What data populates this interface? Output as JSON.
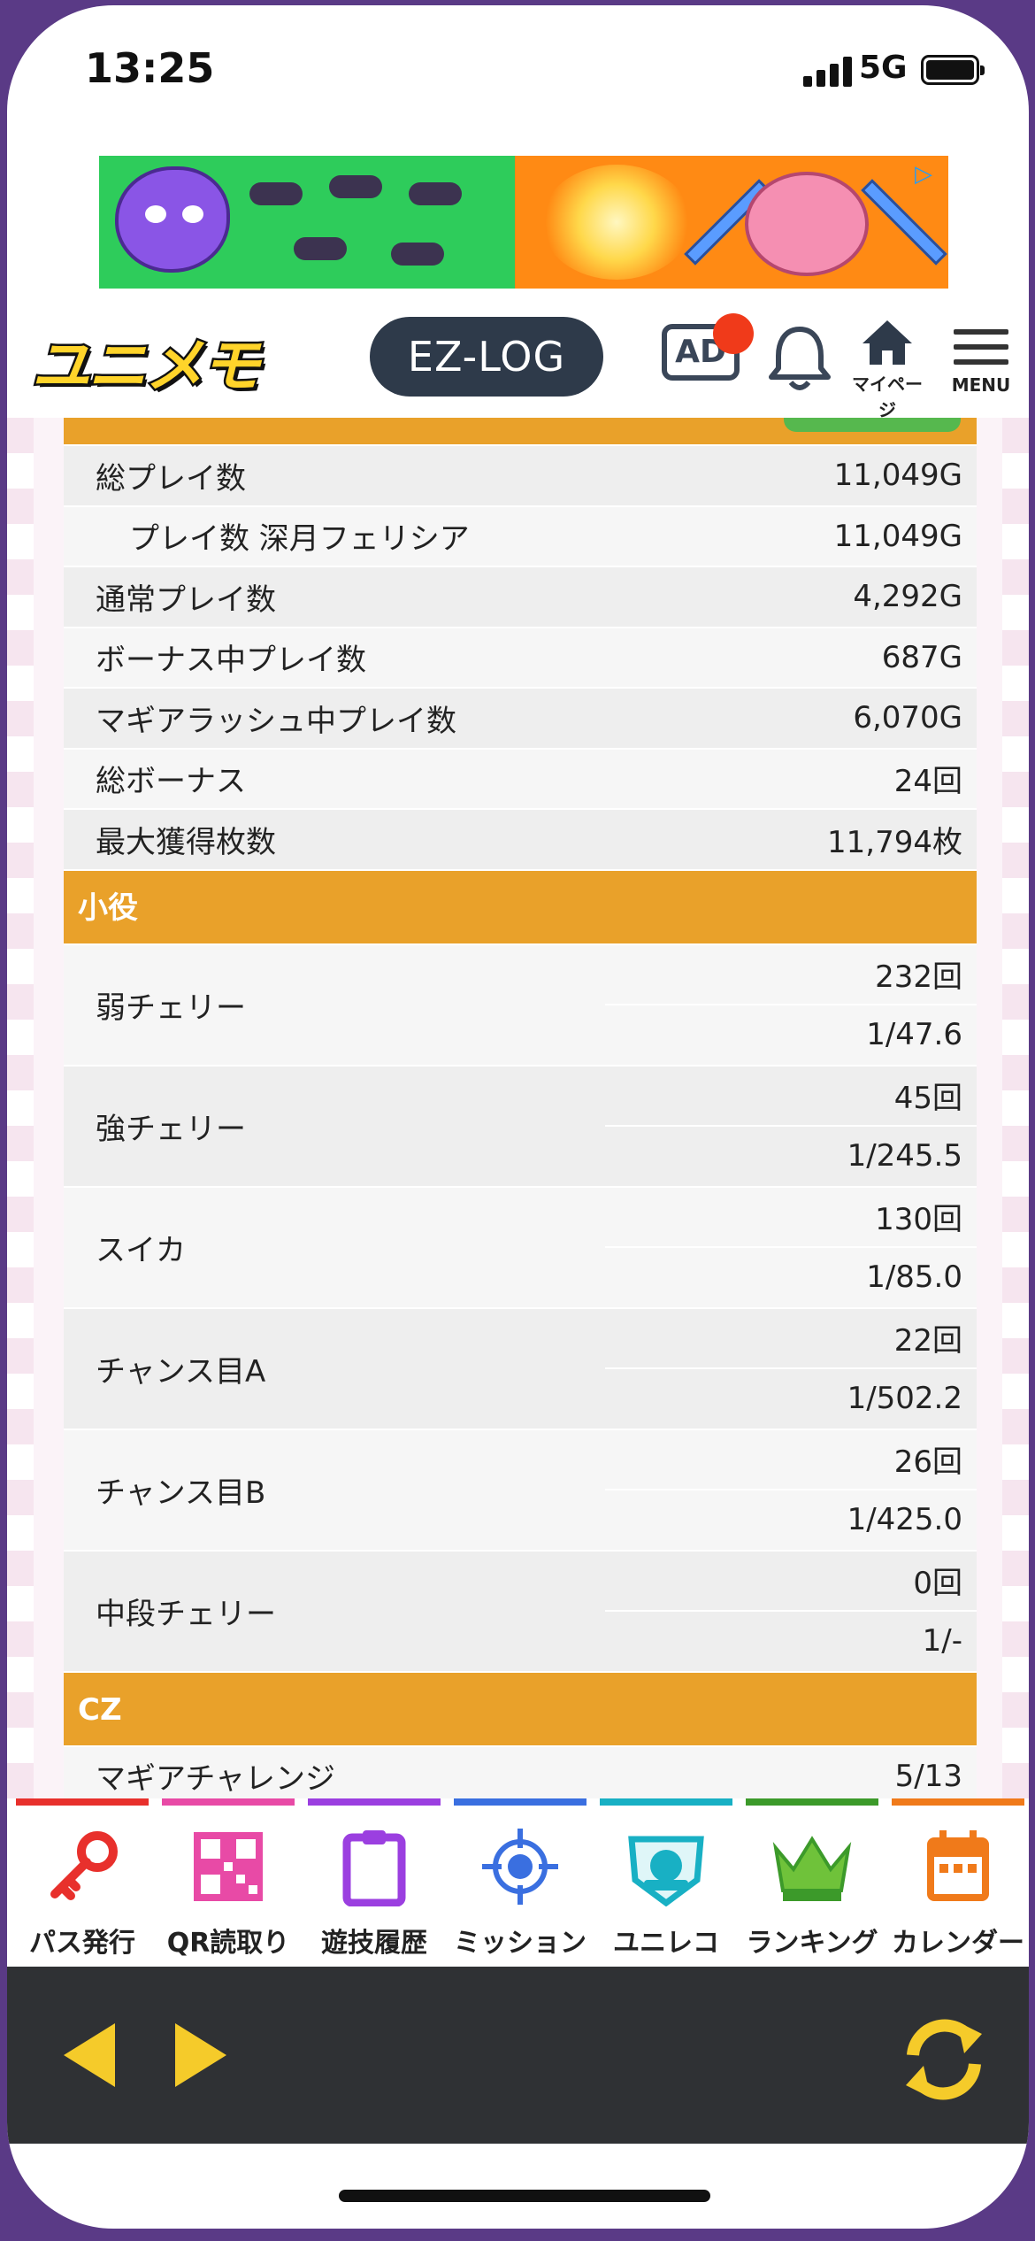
{
  "status_bar": {
    "time": "13:25",
    "network": "5G"
  },
  "header": {
    "logo_text": "ユニメモ",
    "ezlog_label": "EZ-LOG",
    "ad_icon_label": "AD",
    "mypage_label": "マイページ",
    "menu_label": "MENU"
  },
  "summary_rows": [
    {
      "label": "総プレイ数",
      "value": "11,049G",
      "indent": false
    },
    {
      "label": "プレイ数 深月フェリシア",
      "value": "11,049G",
      "indent": true
    },
    {
      "label": "通常プレイ数",
      "value": "4,292G",
      "indent": false
    },
    {
      "label": "ボーナス中プレイ数",
      "value": "687G",
      "indent": false
    },
    {
      "label": "マギアラッシュ中プレイ数",
      "value": "6,070G",
      "indent": false
    },
    {
      "label": "総ボーナス",
      "value": "24回",
      "indent": false
    },
    {
      "label": "最大獲得枚数",
      "value": "11,794枚",
      "indent": false
    }
  ],
  "section_koyaku": "小役",
  "koyaku_rows": [
    {
      "label": "弱チェリー",
      "count": "232回",
      "rate": "1/47.6"
    },
    {
      "label": "強チェリー",
      "count": "45回",
      "rate": "1/245.5"
    },
    {
      "label": "スイカ",
      "count": "130回",
      "rate": "1/85.0"
    },
    {
      "label": "チャンス目A",
      "count": "22回",
      "rate": "1/502.2"
    },
    {
      "label": "チャンス目B",
      "count": "26回",
      "rate": "1/425.0"
    },
    {
      "label": "中段チェリー",
      "count": "0回",
      "rate": "1/-"
    }
  ],
  "section_cz": "CZ",
  "cz_rows": [
    {
      "label": "マギアチャレンジ",
      "value": "5/13"
    }
  ],
  "tabs": [
    {
      "label": "パス発行",
      "color": "#e8302c",
      "icon": "key-icon"
    },
    {
      "label": "QR読取り",
      "color": "#e84aa6",
      "icon": "qr-code-icon"
    },
    {
      "label": "遊技履歴",
      "color": "#9b3fe0",
      "icon": "clipboard-icon"
    },
    {
      "label": "ミッション",
      "color": "#3a6fe0",
      "icon": "target-icon"
    },
    {
      "label": "ユニレコ",
      "color": "#18b0c4",
      "icon": "unireco-badge-icon"
    },
    {
      "label": "ランキング",
      "color": "#3c9a2a",
      "icon": "crown-icon"
    },
    {
      "label": "カレンダー",
      "color": "#f07a1a",
      "icon": "calendar-icon"
    }
  ],
  "colors": {
    "section_header": "#e9a12a",
    "navbar": "#2f3134",
    "nav_accent": "#f5cb2a"
  }
}
